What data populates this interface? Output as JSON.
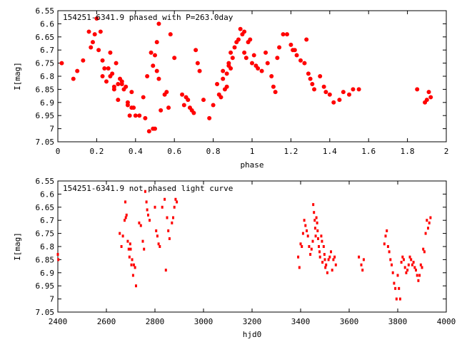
{
  "chart_data": [
    {
      "type": "scatter",
      "title": "154251-6341.9 phased with P=263.0day",
      "xlabel": "phase",
      "ylabel": "I[mag]",
      "xlim": [
        0,
        2
      ],
      "ylim": [
        7.05,
        6.55
      ],
      "y_inverted": true,
      "x_ticks": [
        "0",
        "0.2",
        "0.4",
        "0.6",
        "0.8",
        "1",
        "1.2",
        "1.4",
        "1.6",
        "1.8",
        "2"
      ],
      "y_ticks": [
        "6.55",
        "6.6",
        "6.65",
        "6.7",
        "6.75",
        "6.8",
        "6.85",
        "6.9",
        "6.95",
        "7",
        "7.05"
      ],
      "marker_color": "#ff0000",
      "series": [
        {
          "x": [
            0.02,
            0.08,
            0.1,
            0.13,
            0.16,
            0.17,
            0.18,
            0.19,
            0.2,
            0.21,
            0.22,
            0.23,
            0.23,
            0.24,
            0.25,
            0.26,
            0.27,
            0.27,
            0.28,
            0.29,
            0.29,
            0.3,
            0.31,
            0.31,
            0.32,
            0.33,
            0.33,
            0.34,
            0.35,
            0.36,
            0.36,
            0.37,
            0.38,
            0.38,
            0.39,
            0.4,
            0.42,
            0.44,
            0.45,
            0.46,
            0.47,
            0.48,
            0.49,
            0.49,
            0.5,
            0.5,
            0.51,
            0.51,
            0.52,
            0.52,
            0.53,
            0.55,
            0.56,
            0.57,
            0.58,
            0.6,
            0.64,
            0.65,
            0.66,
            0.67,
            0.68,
            0.69,
            0.7,
            0.71,
            0.72,
            0.73,
            0.75,
            0.78,
            0.8,
            0.82,
            0.83,
            0.84,
            0.85,
            0.85,
            0.86,
            0.87,
            0.87,
            0.88,
            0.88,
            0.89,
            0.89,
            0.9,
            0.91,
            0.92,
            0.93,
            0.94,
            0.95,
            0.96,
            0.96,
            0.97,
            0.98,
            0.99,
            1.0,
            1.01,
            1.02,
            1.03,
            1.05,
            1.07,
            1.08,
            1.1,
            1.11,
            1.12,
            1.13,
            1.14,
            1.16,
            1.18,
            1.2,
            1.21,
            1.22,
            1.23,
            1.25,
            1.27,
            1.28,
            1.29,
            1.3,
            1.31,
            1.32,
            1.35,
            1.37,
            1.38,
            1.4,
            1.42,
            1.45,
            1.47,
            1.5,
            1.52,
            1.55,
            1.85,
            1.89,
            1.9,
            1.91,
            1.92
          ],
          "y": [
            6.75,
            6.81,
            6.78,
            6.74,
            6.63,
            6.69,
            6.67,
            6.64,
            6.58,
            6.7,
            6.63,
            6.74,
            6.8,
            6.77,
            6.82,
            6.77,
            6.8,
            6.71,
            6.79,
            6.84,
            6.85,
            6.75,
            6.83,
            6.89,
            6.81,
            6.82,
            6.83,
            6.85,
            6.84,
            6.9,
            6.91,
            6.95,
            6.92,
            6.86,
            6.92,
            6.95,
            6.95,
            6.88,
            6.96,
            6.8,
            7.01,
            6.71,
            7.0,
            6.76,
            7.0,
            6.72,
            6.67,
            6.78,
            6.6,
            6.81,
            6.93,
            6.87,
            6.86,
            6.92,
            6.64,
            6.73,
            6.87,
            6.91,
            6.88,
            6.89,
            6.92,
            6.93,
            6.94,
            6.7,
            6.75,
            6.78,
            6.89,
            6.96,
            6.91,
            6.83,
            6.87,
            6.88,
            6.78,
            6.81,
            6.85,
            6.79,
            6.84,
            6.76,
            6.75,
            6.71,
            6.77,
            6.73,
            6.69,
            6.67,
            6.66,
            6.62,
            6.64,
            6.63,
            6.71,
            6.73,
            6.67,
            6.66,
            6.75,
            6.72,
            6.76,
            6.77,
            6.78,
            6.71,
            6.75,
            6.8,
            6.84,
            6.86,
            6.73,
            6.69,
            6.64,
            6.64,
            6.68,
            6.7,
            6.7,
            6.72,
            6.74,
            6.75,
            6.66,
            6.79,
            6.81,
            6.83,
            6.85,
            6.8,
            6.84,
            6.86,
            6.87,
            6.9,
            6.89,
            6.86,
            6.87,
            6.85,
            6.85,
            6.85,
            6.9,
            6.89,
            6.86,
            6.88
          ]
        }
      ]
    },
    {
      "type": "scatter",
      "title": "154251-6341.9 not phased light curve",
      "xlabel": "hjd0",
      "ylabel": "I[mag]",
      "xlim": [
        2400,
        4000
      ],
      "ylim": [
        7.05,
        6.55
      ],
      "y_inverted": true,
      "x_ticks": [
        "2400",
        "2600",
        "2800",
        "3000",
        "3200",
        "3400",
        "3600",
        "3800",
        "4000"
      ],
      "y_ticks": [
        "6.55",
        "6.6",
        "6.65",
        "6.7",
        "6.75",
        "6.8",
        "6.85",
        "6.9",
        "6.95",
        "7",
        "7.05"
      ],
      "marker_color": "#ff0000",
      "series": [
        {
          "x": [
            2400,
            2402,
            2655,
            2662,
            2668,
            2675,
            2678,
            2680,
            2683,
            2688,
            2692,
            2695,
            2698,
            2700,
            2703,
            2706,
            2710,
            2713,
            2718,
            2722,
            2735,
            2742,
            2750,
            2755,
            2760,
            2765,
            2768,
            2772,
            2778,
            2800,
            2805,
            2810,
            2815,
            2820,
            2830,
            2840,
            2845,
            2850,
            2855,
            2860,
            2870,
            2875,
            2880,
            2885,
            2890,
            3390,
            3395,
            3400,
            3405,
            3410,
            3415,
            3420,
            3425,
            3430,
            3435,
            3440,
            3445,
            3450,
            3452,
            3455,
            3458,
            3460,
            3462,
            3465,
            3468,
            3470,
            3472,
            3475,
            3478,
            3480,
            3485,
            3488,
            3490,
            3495,
            3498,
            3500,
            3502,
            3505,
            3510,
            3515,
            3520,
            3525,
            3530,
            3535,
            3540,
            3545,
            3640,
            3650,
            3655,
            3660,
            3745,
            3750,
            3755,
            3760,
            3765,
            3770,
            3775,
            3780,
            3785,
            3790,
            3795,
            3800,
            3805,
            3810,
            3815,
            3820,
            3825,
            3830,
            3835,
            3840,
            3845,
            3850,
            3855,
            3860,
            3865,
            3870,
            3875,
            3880,
            3885,
            3890,
            3895,
            3900,
            3905,
            3910,
            3915,
            3920,
            3925,
            3930,
            3935
          ],
          "y": [
            6.83,
            6.85,
            6.75,
            6.8,
            6.76,
            6.7,
            6.63,
            6.69,
            6.68,
            6.78,
            6.81,
            6.84,
            6.79,
            6.81,
            6.87,
            6.85,
            6.91,
            6.87,
            6.88,
            6.95,
            6.71,
            6.72,
            6.78,
            6.81,
            6.59,
            6.63,
            6.66,
            6.68,
            6.7,
            6.65,
            6.74,
            6.76,
            6.79,
            6.8,
            6.65,
            6.62,
            6.89,
            6.69,
            6.74,
            6.77,
            6.71,
            6.69,
            6.65,
            6.62,
            6.63,
            6.84,
            6.88,
            6.79,
            6.8,
            6.75,
            6.7,
            6.72,
            6.74,
            6.76,
            6.8,
            6.83,
            6.81,
            6.78,
            6.64,
            6.67,
            6.7,
            6.73,
            6.76,
            6.69,
            6.71,
            6.74,
            6.77,
            6.8,
            6.82,
            6.84,
            6.76,
            6.78,
            6.86,
            6.8,
            6.83,
            6.85,
            6.88,
            6.87,
            6.9,
            6.85,
            6.84,
            6.82,
            6.89,
            6.85,
            6.84,
            6.87,
            6.84,
            6.87,
            6.89,
            6.85,
            6.79,
            6.76,
            6.74,
            6.8,
            6.82,
            6.85,
            6.87,
            6.9,
            6.94,
            6.96,
            7.0,
            6.91,
            6.96,
            7.0,
            6.86,
            6.84,
            6.85,
            6.88,
            6.9,
            6.89,
            6.87,
            6.84,
            6.85,
            6.87,
            6.86,
            6.88,
            6.89,
            6.91,
            6.93,
            6.91,
            6.87,
            6.88,
            6.81,
            6.82,
            6.75,
            6.7,
            6.73,
            6.71,
            6.69
          ]
        }
      ]
    }
  ]
}
